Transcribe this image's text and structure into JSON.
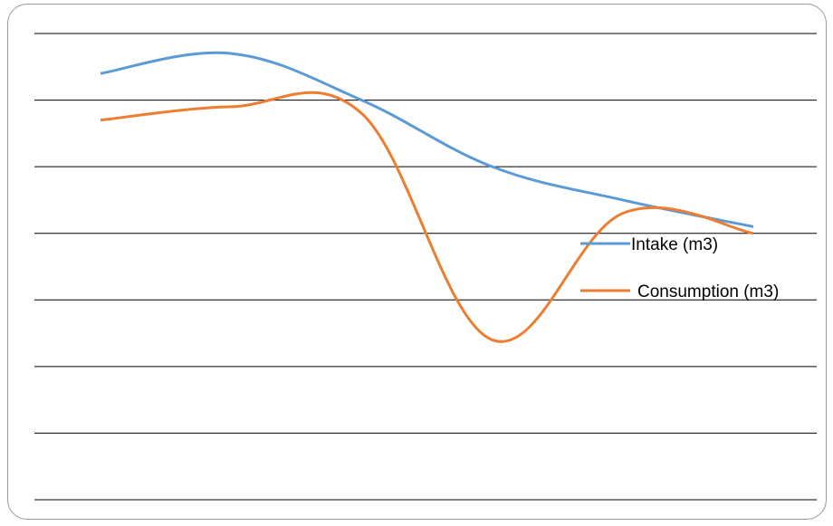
{
  "chart_data": {
    "type": "line",
    "title": "",
    "xlabel": "",
    "ylabel": "",
    "x": [
      1,
      2,
      3,
      4,
      5,
      6
    ],
    "ylim": [
      0,
      7
    ],
    "grid": true,
    "legend_position": "right",
    "series": [
      {
        "name": "Intake (m3)",
        "color": "#5B9BD5",
        "values": [
          6.4,
          6.7,
          6.0,
          5.0,
          4.5,
          4.1
        ]
      },
      {
        "name": "Consumption (m3)",
        "color": "#ED7D31",
        "values": [
          5.7,
          5.9,
          5.8,
          2.4,
          4.3,
          4.0
        ]
      }
    ]
  }
}
